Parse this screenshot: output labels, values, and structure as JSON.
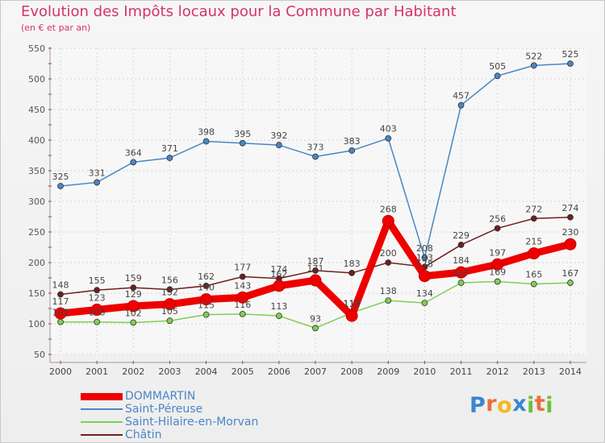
{
  "title": "Evolution des Impôts locaux pour la Commune par Habitant",
  "subtitle": "(en € et par an)",
  "logo": {
    "text": "Proxiti",
    "letters": [
      "P",
      "r",
      "o",
      "x",
      "i",
      "t",
      "i"
    ],
    "colors": [
      "#3b86d1",
      "#e7703a",
      "#f1b820",
      "#3b86d1",
      "#6cbf3a",
      "#e7703a",
      "#6cbf3a"
    ]
  },
  "chart_data": {
    "type": "line",
    "title": "Evolution des Impôts locaux pour la Commune par Habitant",
    "subtitle": "(en € et par an)",
    "xlabel": "",
    "ylabel": "",
    "categories": [
      "2000",
      "2001",
      "2002",
      "2003",
      "2004",
      "2005",
      "2006",
      "2007",
      "2008",
      "2009",
      "2010",
      "2011",
      "2012",
      "2013",
      "2014"
    ],
    "yticks": [
      "50",
      "100",
      "150",
      "200",
      "250",
      "300",
      "350",
      "400",
      "450",
      "500",
      "550"
    ],
    "ylim": [
      50,
      550
    ],
    "grid": true,
    "legend_position": "bottom-left",
    "series": [
      {
        "name": "DOMMARTIN",
        "color": "#ee0000",
        "emphasis": true,
        "values": [
          117,
          123,
          129,
          132,
          140,
          143,
          162,
          171,
          113,
          268,
          178,
          184,
          197,
          215,
          230
        ],
        "labels": [
          "117",
          "123",
          "129",
          "132",
          "140",
          "143",
          "162",
          "171",
          "113",
          "268",
          "178",
          "184",
          "197",
          "215",
          "230"
        ]
      },
      {
        "name": "Saint-Péreuse",
        "color": "#4a86c5",
        "values": [
          325,
          331,
          364,
          371,
          398,
          395,
          392,
          373,
          383,
          403,
          208,
          457,
          505,
          522,
          525
        ],
        "labels": [
          "325",
          "331",
          "364",
          "371",
          "398",
          "395",
          "392",
          "373",
          "383",
          "403",
          "208",
          "457",
          "505",
          "522",
          "525"
        ]
      },
      {
        "name": "Saint-Hilaire-en-Morvan",
        "color": "#7fcf52",
        "values": [
          103,
          103,
          102,
          105,
          115,
          116,
          113,
          93,
          118,
          138,
          134,
          167,
          169,
          165,
          167
        ],
        "labels": [
          "103",
          "103",
          "102",
          "105",
          "115",
          "116",
          "113",
          "93",
          "118",
          "138",
          "134",
          "167",
          "169",
          "165",
          "167"
        ]
      },
      {
        "name": "Châtin",
        "color": "#6e1f1f",
        "values": [
          148,
          155,
          159,
          156,
          162,
          177,
          174,
          187,
          183,
          200,
          193,
          229,
          256,
          272,
          274
        ],
        "labels": [
          "148",
          "155",
          "159",
          "156",
          "162",
          "177",
          "174",
          "187",
          "183",
          "200",
          "193",
          "229",
          "256",
          "272",
          "274"
        ]
      }
    ]
  }
}
